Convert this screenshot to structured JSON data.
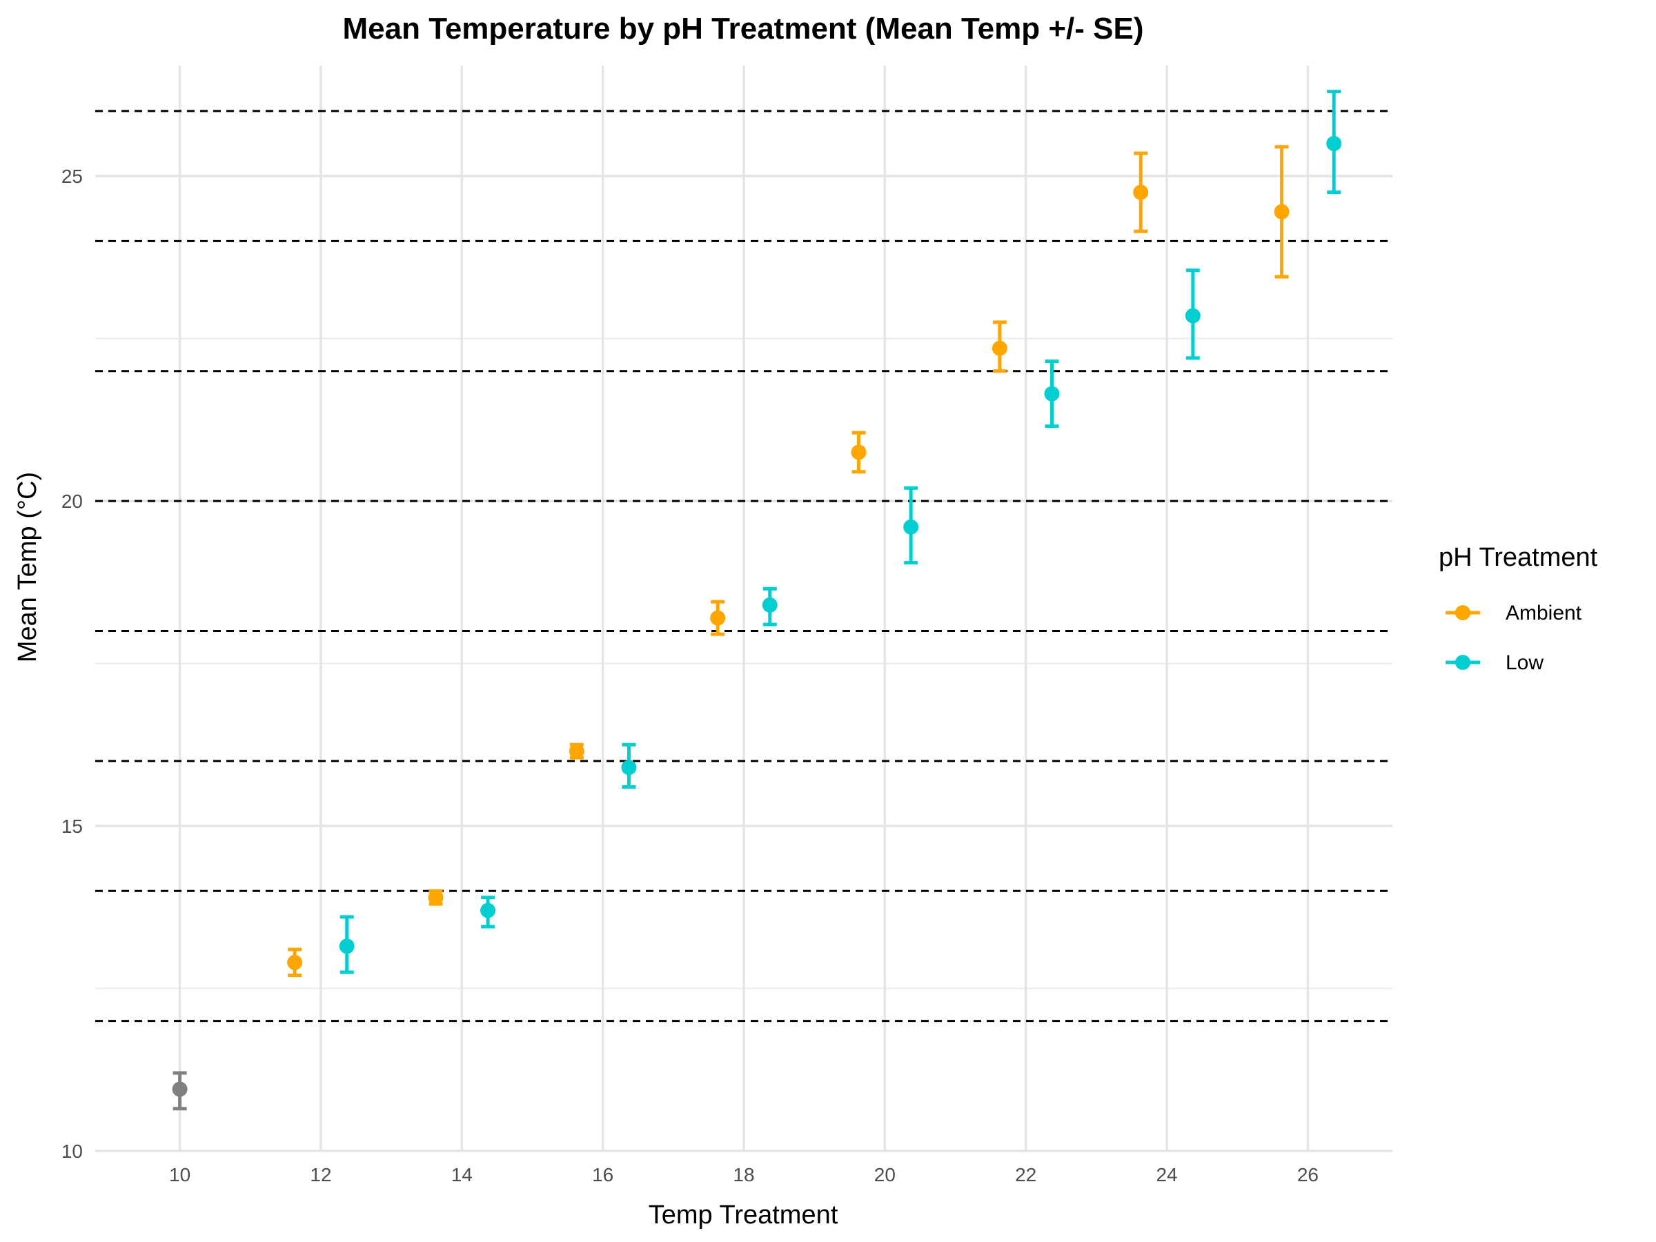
{
  "chart_data": {
    "type": "scatter",
    "title": "Mean Temperature by pH Treatment (Mean Temp +/- SE)",
    "xlabel": "Temp Treatment",
    "ylabel": "Mean Temp (°C)",
    "xlim": [
      8.8,
      27.2
    ],
    "ylim": [
      10,
      26.7
    ],
    "x_ticks": [
      10,
      12,
      14,
      16,
      18,
      20,
      22,
      24,
      26
    ],
    "y_ticks": [
      10,
      15,
      20,
      25
    ],
    "y_minor_ticks": [
      12.5,
      17.5,
      22.5
    ],
    "reference_lines": [
      12,
      14,
      16,
      18,
      20,
      22,
      24,
      26
    ],
    "grid": true,
    "legend": {
      "title": "pH Treatment",
      "placement": "right",
      "entries": [
        {
          "label": "Ambient",
          "color": "#FFA500"
        },
        {
          "label": "Low",
          "color": "#00CED1"
        }
      ]
    },
    "series": [
      {
        "name": "Ambient",
        "color": "#FFA500",
        "points": [
          {
            "x": 11.63,
            "y": 12.9,
            "lo": 12.7,
            "hi": 13.1
          },
          {
            "x": 13.63,
            "y": 13.9,
            "lo": 13.8,
            "hi": 14.0
          },
          {
            "x": 15.63,
            "y": 16.15,
            "lo": 16.05,
            "hi": 16.25
          },
          {
            "x": 17.63,
            "y": 18.2,
            "lo": 17.95,
            "hi": 18.45
          },
          {
            "x": 19.63,
            "y": 20.75,
            "lo": 20.45,
            "hi": 21.05
          },
          {
            "x": 21.63,
            "y": 22.35,
            "lo": 22.0,
            "hi": 22.75
          },
          {
            "x": 23.63,
            "y": 24.75,
            "lo": 24.15,
            "hi": 25.35
          },
          {
            "x": 25.63,
            "y": 24.45,
            "lo": 23.45,
            "hi": 25.45
          }
        ]
      },
      {
        "name": "Low",
        "color": "#00CED1",
        "points": [
          {
            "x": 12.37,
            "y": 13.15,
            "lo": 12.75,
            "hi": 13.6
          },
          {
            "x": 14.37,
            "y": 13.7,
            "lo": 13.45,
            "hi": 13.9
          },
          {
            "x": 16.37,
            "y": 15.9,
            "lo": 15.6,
            "hi": 16.25
          },
          {
            "x": 18.37,
            "y": 18.4,
            "lo": 18.1,
            "hi": 18.65
          },
          {
            "x": 20.37,
            "y": 19.6,
            "lo": 19.05,
            "hi": 20.2
          },
          {
            "x": 22.37,
            "y": 21.65,
            "lo": 21.15,
            "hi": 22.15
          },
          {
            "x": 24.37,
            "y": 22.85,
            "lo": 22.2,
            "hi": 23.55
          },
          {
            "x": 26.37,
            "y": 25.5,
            "lo": 24.75,
            "hi": 26.3
          }
        ]
      },
      {
        "color": "#808080",
        "points": [
          {
            "x": 10.0,
            "y": 10.95,
            "lo": 10.65,
            "hi": 11.2
          }
        ]
      }
    ]
  }
}
